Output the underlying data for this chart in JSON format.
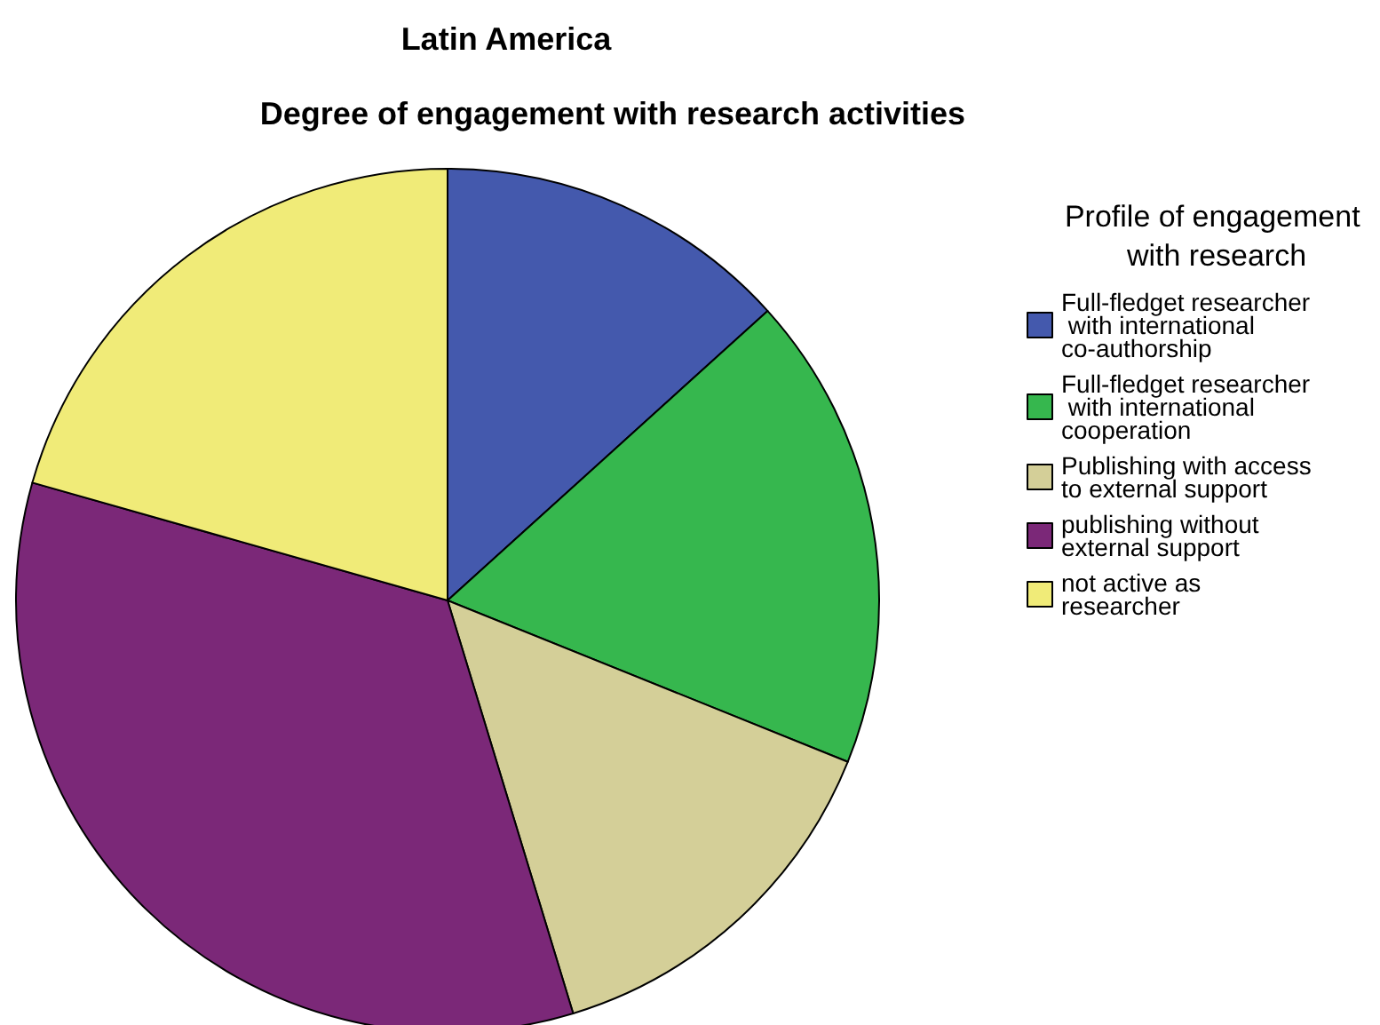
{
  "chart_data": {
    "type": "pie",
    "title": "Latin America",
    "subtitle": "Degree of engagement with research activities",
    "legend_title": "Profile of engagement with research",
    "legend": "right",
    "categories": [
      "Full-fledget researcher with international co-authorship",
      "Full-fledget researcher with international cooperation",
      "Publishing with access to external support",
      "publishing without external support",
      "not active as researcher"
    ],
    "values": [
      13.3,
      17.8,
      14.2,
      34.1,
      20.6
    ],
    "colors": [
      "#4459ad",
      "#36b74e",
      "#d4cf98",
      "#7b2878",
      "#f0eb78"
    ]
  }
}
